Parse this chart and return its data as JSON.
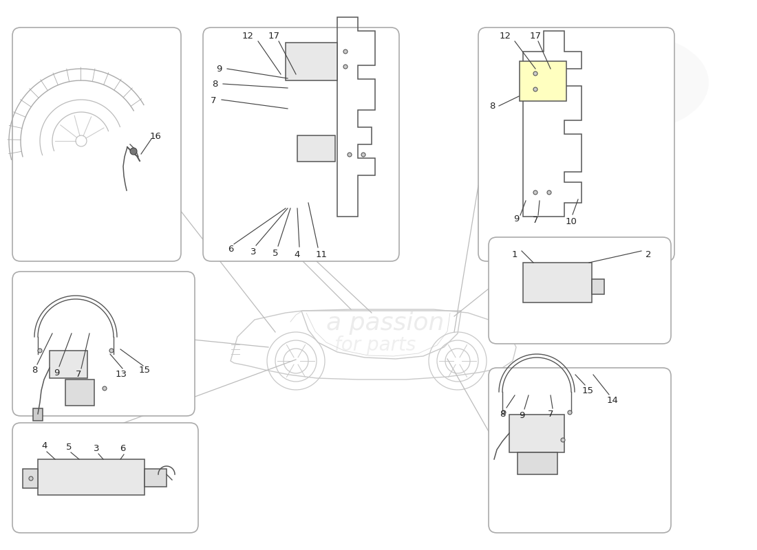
{
  "bg": "#ffffff",
  "box_ec": "#aaaaaa",
  "lc": "#444444",
  "sc": "#999999",
  "tc": "#222222",
  "boxes": {
    "tl": [
      18,
      420,
      245,
      340
    ],
    "tm": [
      295,
      420,
      285,
      340
    ],
    "tr": [
      695,
      420,
      285,
      340
    ],
    "ml": [
      18,
      195,
      265,
      210
    ],
    "bl": [
      18,
      25,
      270,
      160
    ],
    "mr": [
      710,
      300,
      265,
      155
    ],
    "br": [
      710,
      25,
      265,
      240
    ]
  },
  "wm_text1": "a passion",
  "wm_text2": "for parts",
  "wm_col": "#e0e0e0",
  "logo_col": "#d0d000"
}
